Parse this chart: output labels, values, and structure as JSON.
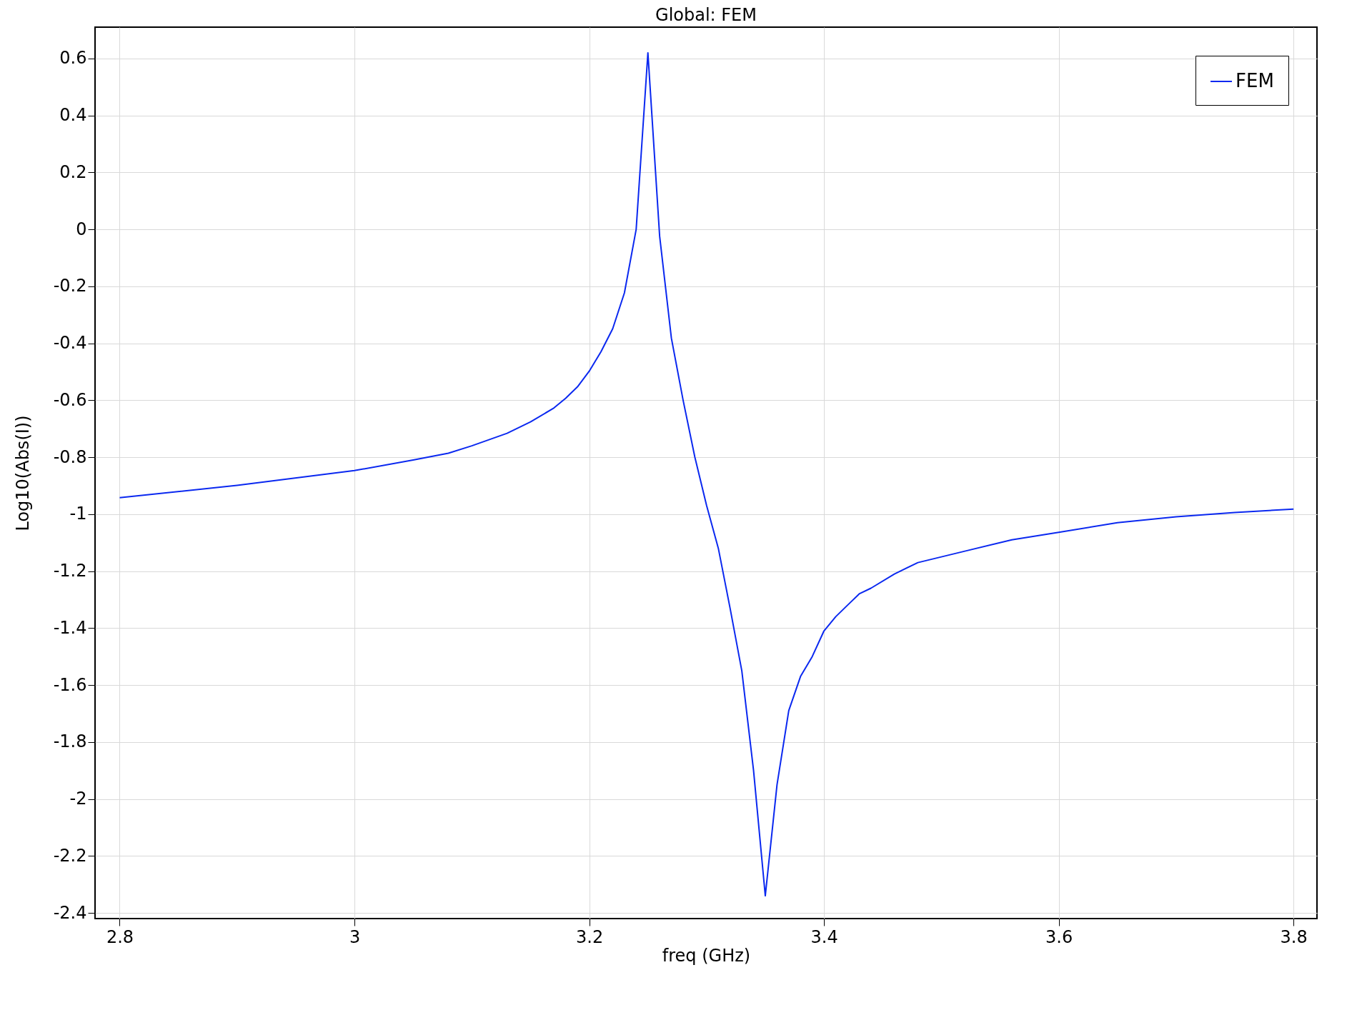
{
  "chart_data": {
    "type": "line",
    "title": "Global: FEM",
    "xlabel": "freq (GHz)",
    "ylabel": "Log10(Abs(I))",
    "xlim": [
      2.779,
      3.82
    ],
    "ylim": [
      -2.42,
      0.71
    ],
    "xticks": [
      2.8,
      3,
      3.2,
      3.4,
      3.6,
      3.8
    ],
    "yticks": [
      -2.4,
      -2.2,
      -2,
      -1.8,
      -1.6,
      -1.4,
      -1.2,
      -1,
      -0.8,
      -0.6,
      -0.4,
      -0.2,
      0,
      0.2,
      0.4,
      0.6
    ],
    "grid": true,
    "legend": "top right",
    "line_style": "solid",
    "series": [
      {
        "name": "FEM",
        "color": "#0a28f0",
        "x": [
          2.8,
          2.9,
          3.0,
          3.05,
          3.08,
          3.1,
          3.13,
          3.15,
          3.17,
          3.18,
          3.19,
          3.2,
          3.21,
          3.22,
          3.23,
          3.24,
          3.25,
          3.26,
          3.27,
          3.28,
          3.29,
          3.3,
          3.31,
          3.32,
          3.33,
          3.34,
          3.35,
          3.36,
          3.37,
          3.38,
          3.39,
          3.4,
          3.41,
          3.42,
          3.43,
          3.44,
          3.46,
          3.48,
          3.52,
          3.56,
          3.6,
          3.65,
          3.7,
          3.75,
          3.8
        ],
        "values": [
          -0.942,
          -0.899,
          -0.847,
          -0.81,
          -0.786,
          -0.76,
          -0.716,
          -0.676,
          -0.627,
          -0.593,
          -0.553,
          -0.498,
          -0.43,
          -0.349,
          -0.223,
          0.0,
          0.62,
          -0.024,
          -0.382,
          -0.6,
          -0.8,
          -0.97,
          -1.12,
          -1.33,
          -1.55,
          -1.9,
          -2.34,
          -1.95,
          -1.69,
          -1.57,
          -1.5,
          -1.41,
          -1.36,
          -1.32,
          -1.28,
          -1.26,
          -1.21,
          -1.17,
          -1.13,
          -1.09,
          -1.064,
          -1.03,
          -1.009,
          -0.994,
          -0.982
        ]
      }
    ]
  }
}
